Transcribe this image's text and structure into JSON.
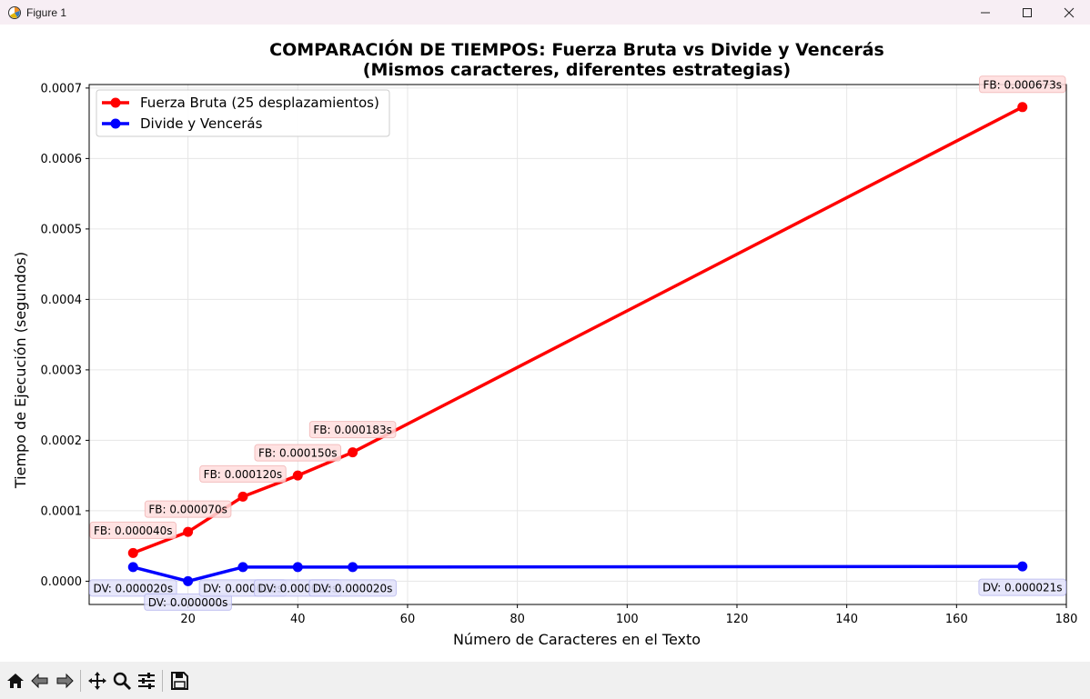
{
  "window": {
    "title": "Figure 1",
    "icons": {
      "app": "matplotlib-icon",
      "minimize": "minimize-icon",
      "maximize": "maximize-icon",
      "close": "close-icon"
    }
  },
  "toolbar": {
    "buttons": [
      {
        "name": "home-icon"
      },
      {
        "name": "back-icon"
      },
      {
        "name": "forward-icon"
      },
      {
        "name": "pan-icon"
      },
      {
        "name": "zoom-icon"
      },
      {
        "name": "configure-subplots-icon"
      },
      {
        "name": "save-icon"
      }
    ]
  },
  "chart_data": {
    "type": "line",
    "title": "COMPARACIÓN DE TIEMPOS: Fuerza Bruta vs Divide y Vencerás",
    "subtitle": "(Mismos caracteres, diferentes estrategias)",
    "xlabel": "Número de Caracteres en el Texto",
    "ylabel": "Tiempo de Ejecución (segundos)",
    "xlim": [
      2,
      180
    ],
    "ylim": [
      -3.3e-05,
      0.000705
    ],
    "xticks": [
      20,
      40,
      60,
      80,
      100,
      120,
      140,
      160,
      180
    ],
    "xtick_labels": [
      "20",
      "40",
      "60",
      "80",
      "100",
      "120",
      "140",
      "160",
      "180"
    ],
    "yticks": [
      0,
      0.0001,
      0.0002,
      0.0003,
      0.0004,
      0.0005,
      0.0006,
      0.0007
    ],
    "ytick_labels": [
      "0.0000",
      "0.0001",
      "0.0002",
      "0.0003",
      "0.0004",
      "0.0005",
      "0.0006",
      "0.0007"
    ],
    "grid": true,
    "legend_position": "top-left",
    "x": [
      10,
      20,
      30,
      40,
      50,
      172
    ],
    "series": [
      {
        "name": "Fuerza Bruta (25 desplazamientos)",
        "color": "#ff0000",
        "label_bg": "#ffdede",
        "label_border": "#f2b4b4",
        "values": [
          4e-05,
          7e-05,
          0.00012,
          0.00015,
          0.000183,
          0.000673
        ],
        "labels": [
          "FB: 0.000040s",
          "FB: 0.000070s",
          "FB: 0.000120s",
          "FB: 0.000150s",
          "FB: 0.000183s",
          "FB: 0.000673s"
        ]
      },
      {
        "name": "Divide y Vencerás",
        "color": "#0000ff",
        "label_bg": "#e2e2fb",
        "label_border": "#b8b8ee",
        "values": [
          2e-05,
          0.0,
          2e-05,
          2e-05,
          2e-05,
          2.1e-05
        ],
        "labels": [
          "DV: 0.000020s",
          "DV: 0.000000s",
          "DV: 0.000020s",
          "DV: 0.000020s",
          "DV: 0.000020s",
          "DV: 0.000021s"
        ]
      }
    ]
  }
}
